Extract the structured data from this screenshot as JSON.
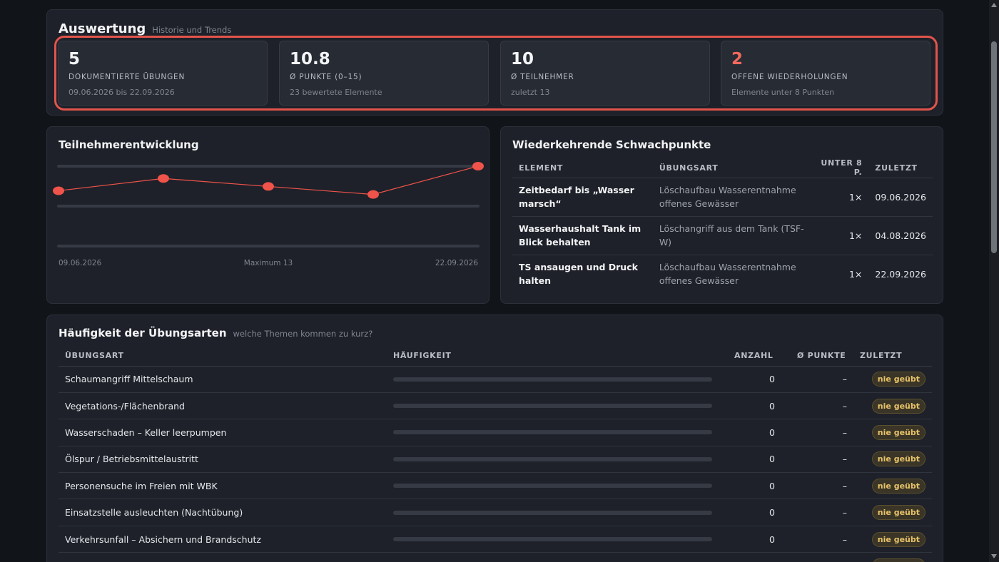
{
  "summary": {
    "title": "Auswertung",
    "subtitle": "Historie und Trends",
    "stats": [
      {
        "value": "5",
        "label": "DOKUMENTIERTE ÜBUNGEN",
        "sub": "09.06.2026 bis 22.09.2026"
      },
      {
        "value": "10.8",
        "label": "Ø PUNKTE (0–15)",
        "sub": "23 bewertete Elemente"
      },
      {
        "value": "10",
        "label": "Ø TEILNEHMER",
        "sub": "zuletzt 13"
      },
      {
        "value": "2",
        "label": "OFFENE WIEDERHOLUNGEN",
        "sub": "Elemente unter 8 Punkten"
      }
    ]
  },
  "trend": {
    "title": "Teilnehmerentwicklung",
    "x_start": "09.06.2026",
    "x_mid": "Maximum 13",
    "x_end": "22.09.2026",
    "accent": "#f0534a"
  },
  "chart_data": {
    "type": "line",
    "x": [
      "09.06.2026",
      "",
      "",
      "",
      "22.09.2026"
    ],
    "values": [
      9,
      11,
      9.7,
      8.4,
      13
    ],
    "ylim": [
      0,
      13
    ],
    "grid": true
  },
  "weak": {
    "title": "Wiederkehrende Schwachpunkte",
    "columns": [
      "ELEMENT",
      "ÜBUNGSART",
      "UNTER 8 P.",
      "ZULETZT"
    ],
    "rows": [
      {
        "element": "Zeitbedarf bis „Wasser marsch“",
        "art": "Löschaufbau Wasserentnahme offenes Gewässer",
        "count": "1×",
        "date": "09.06.2026"
      },
      {
        "element": "Wasserhaushalt Tank im Blick behalten",
        "art": "Löschangriff aus dem Tank (TSF-W)",
        "count": "1×",
        "date": "04.08.2026"
      },
      {
        "element": "TS ansaugen und Druck halten",
        "art": "Löschaufbau Wasserentnahme offenes Gewässer",
        "count": "1×",
        "date": "22.09.2026"
      }
    ]
  },
  "freq": {
    "title": "Häufigkeit der Übungsarten",
    "subtitle": "welche Themen kommen zu kurz?",
    "columns": [
      "ÜBUNGSART",
      "HÄUFIGKEIT",
      "ANZAHL",
      "Ø PUNKTE",
      "ZULETZT"
    ],
    "rows": [
      {
        "art": "Schaumangriff Mittelschaum",
        "count": "0",
        "points": "–",
        "last": "nie geübt"
      },
      {
        "art": "Vegetations-/Flächenbrand",
        "count": "0",
        "points": "–",
        "last": "nie geübt"
      },
      {
        "art": "Wasserschaden – Keller leerpumpen",
        "count": "0",
        "points": "–",
        "last": "nie geübt"
      },
      {
        "art": "Ölspur / Betriebsmittelaustritt",
        "count": "0",
        "points": "–",
        "last": "nie geübt"
      },
      {
        "art": "Personensuche im Freien mit WBK",
        "count": "0",
        "points": "–",
        "last": "nie geübt"
      },
      {
        "art": "Einsatzstelle ausleuchten (Nachtübung)",
        "count": "0",
        "points": "–",
        "last": "nie geübt"
      },
      {
        "art": "Verkehrsunfall – Absichern und Brandschutz",
        "count": "0",
        "points": "–",
        "last": "nie geübt"
      },
      {
        "art": "",
        "count": "",
        "points": "",
        "last": "nie geübt"
      }
    ]
  }
}
